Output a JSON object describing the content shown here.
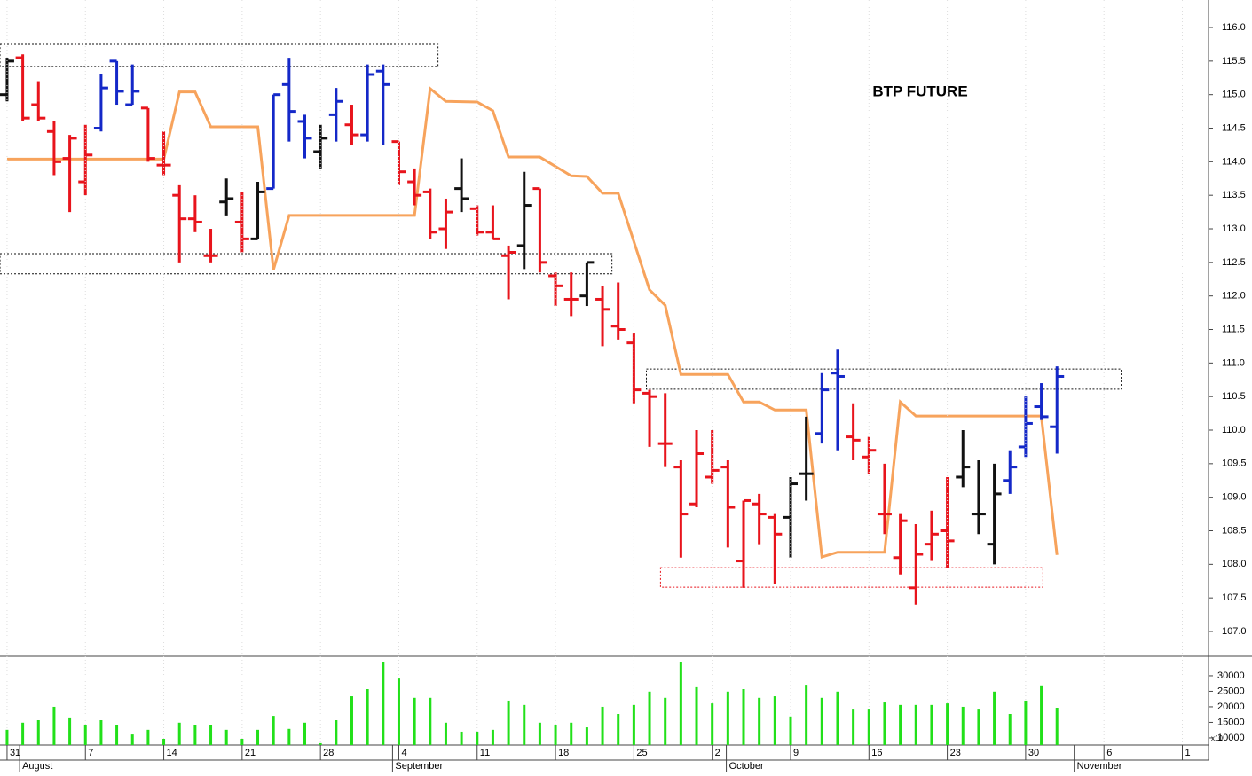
{
  "chart_data": [
    {
      "type": "ohlc",
      "title": "BTP FUTURE",
      "xlim": [
        -0.45,
        76.67
      ],
      "ylim": [
        106.63,
        116.41
      ],
      "yticks": [
        {
          "value": 107,
          "label": "107.0"
        },
        107.5,
        {
          "value": 108,
          "label": "108.0"
        },
        108.5,
        {
          "value": 109,
          "label": "109.0"
        },
        109.5,
        {
          "value": 110,
          "label": "110.0"
        },
        110.5,
        {
          "value": 111,
          "label": "111.0"
        },
        111.5,
        {
          "value": 112,
          "label": "112.0"
        },
        112.5,
        {
          "value": 113,
          "label": "113.0"
        },
        113.5,
        {
          "value": 114,
          "label": "114.0"
        },
        114.5,
        {
          "value": 115,
          "label": "115.0"
        },
        115.5,
        {
          "value": 116,
          "label": "116.0"
        }
      ],
      "x": [
        0,
        1,
        2,
        3,
        4,
        5,
        6,
        7,
        8,
        9,
        10,
        11,
        12,
        13,
        14,
        15,
        16,
        17,
        18,
        19,
        20,
        21,
        22,
        23,
        24,
        25,
        26,
        27,
        28,
        29,
        30,
        31,
        32,
        33,
        34,
        35,
        36,
        37,
        38,
        39,
        40,
        41,
        42,
        43,
        44,
        45,
        46,
        47,
        48,
        49,
        50,
        51,
        52,
        53,
        54,
        55,
        56,
        57,
        58,
        59,
        60,
        61,
        62,
        63,
        64,
        65,
        66,
        67
      ],
      "open": [
        115.0,
        115.55,
        114.85,
        114.45,
        114.05,
        113.7,
        114.5,
        115.5,
        114.85,
        114.8,
        113.95,
        113.5,
        113.15,
        112.6,
        113.4,
        113.1,
        112.85,
        113.6,
        115.15,
        114.6,
        114.15,
        114.7,
        114.55,
        114.4,
        115.35,
        114.3,
        113.7,
        113.55,
        113.0,
        113.6,
        113.3,
        112.95,
        112.6,
        112.75,
        113.6,
        112.3,
        111.95,
        112.0,
        111.95,
        111.55,
        111.3,
        110.55,
        109.8,
        109.45,
        108.9,
        109.3,
        109.45,
        108.05,
        108.9,
        108.7,
        108.7,
        109.35,
        109.95,
        110.85,
        109.9,
        109.6,
        108.75,
        108.1,
        107.65,
        108.3,
        108.5,
        109.3,
        108.75,
        108.3,
        109.25,
        109.75,
        110.35,
        110.05
      ],
      "high": [
        115.55,
        115.6,
        115.2,
        114.6,
        114.4,
        114.55,
        115.3,
        115.5,
        115.45,
        114.8,
        114.45,
        113.65,
        113.5,
        113.0,
        113.75,
        113.55,
        113.7,
        115.0,
        115.55,
        114.7,
        114.55,
        115.1,
        114.85,
        115.45,
        115.45,
        114.3,
        113.9,
        113.6,
        113.45,
        114.05,
        113.35,
        113.35,
        112.75,
        113.85,
        113.6,
        112.35,
        112.35,
        112.5,
        112.15,
        112.2,
        111.45,
        110.6,
        110.55,
        109.55,
        110.0,
        110.0,
        109.55,
        108.95,
        109.05,
        108.75,
        109.3,
        110.2,
        110.85,
        111.2,
        110.4,
        109.9,
        109.5,
        108.75,
        108.6,
        108.8,
        109.3,
        110.0,
        109.55,
        109.5,
        109.7,
        110.5,
        110.7,
        110.95
      ],
      "low": [
        114.9,
        114.6,
        114.6,
        113.8,
        113.25,
        113.5,
        114.45,
        114.85,
        114.85,
        114.0,
        113.8,
        112.5,
        112.95,
        112.5,
        113.2,
        112.65,
        112.85,
        113.6,
        114.3,
        114.05,
        113.9,
        114.3,
        114.25,
        114.3,
        114.25,
        113.65,
        113.35,
        112.85,
        112.7,
        113.25,
        112.9,
        112.85,
        111.95,
        112.4,
        112.35,
        111.85,
        111.7,
        111.85,
        111.25,
        111.35,
        110.4,
        109.75,
        109.45,
        108.1,
        108.85,
        109.2,
        108.25,
        107.65,
        108.3,
        107.7,
        108.1,
        108.95,
        109.8,
        109.7,
        109.55,
        109.35,
        108.45,
        107.85,
        107.4,
        108.05,
        107.95,
        109.15,
        108.45,
        108.0,
        109.05,
        109.6,
        110.15,
        109.65
      ],
      "close": [
        115.5,
        114.65,
        114.65,
        114.0,
        114.35,
        114.1,
        115.1,
        115.05,
        115.05,
        114.05,
        113.95,
        113.15,
        113.1,
        112.6,
        113.45,
        112.85,
        113.55,
        115.0,
        114.75,
        114.35,
        114.35,
        114.9,
        114.4,
        115.3,
        115.15,
        113.85,
        113.5,
        112.95,
        113.25,
        113.45,
        112.95,
        112.85,
        112.65,
        113.35,
        112.5,
        112.15,
        111.95,
        112.5,
        111.8,
        111.5,
        110.6,
        110.5,
        109.8,
        108.75,
        109.65,
        109.4,
        108.85,
        108.95,
        108.75,
        108.45,
        109.2,
        109.35,
        110.6,
        110.8,
        109.85,
        109.7,
        108.75,
        108.65,
        108.15,
        108.45,
        108.35,
        109.45,
        108.75,
        109.05,
        109.45,
        110.1,
        110.2,
        110.8
      ],
      "colors": [
        "#111111",
        "#e8141c",
        "#e8141c",
        "#e8141c",
        "#e8141c",
        "#e8141c",
        "#1428c8",
        "#1428c8",
        "#1428c8",
        "#e8141c",
        "#e8141c",
        "#e8141c",
        "#e8141c",
        "#e8141c",
        "#111111",
        "#e8141c",
        "#111111",
        "#1428c8",
        "#1428c8",
        "#1428c8",
        "#111111",
        "#1428c8",
        "#e8141c",
        "#1428c8",
        "#1428c8",
        "#e8141c",
        "#e8141c",
        "#e8141c",
        "#e8141c",
        "#111111",
        "#e8141c",
        "#e8141c",
        "#e8141c",
        "#111111",
        "#e8141c",
        "#e8141c",
        "#e8141c",
        "#111111",
        "#e8141c",
        "#e8141c",
        "#e8141c",
        "#e8141c",
        "#e8141c",
        "#e8141c",
        "#e8141c",
        "#e8141c",
        "#e8141c",
        "#e8141c",
        "#e8141c",
        "#e8141c",
        "#111111",
        "#111111",
        "#1428c8",
        "#1428c8",
        "#e8141c",
        "#e8141c",
        "#e8141c",
        "#e8141c",
        "#e8141c",
        "#e8141c",
        "#e8141c",
        "#111111",
        "#111111",
        "#111111",
        "#1428c8",
        "#1428c8",
        "#1428c8",
        "#1428c8"
      ],
      "stop_line": {
        "color": "#f7a35c",
        "x": [
          0,
          10,
          11,
          12,
          13,
          16,
          17,
          18,
          26,
          27,
          28,
          30,
          31,
          32,
          34,
          36,
          37,
          38,
          39,
          41,
          42,
          43,
          46,
          47,
          48,
          49,
          51,
          52,
          53,
          56,
          57,
          58,
          66,
          67
        ],
        "values": [
          114.04,
          114.04,
          115.04,
          115.04,
          114.52,
          114.52,
          112.39,
          113.2,
          113.2,
          115.09,
          114.9,
          114.89,
          114.76,
          114.07,
          114.07,
          113.79,
          113.78,
          113.53,
          113.53,
          112.09,
          111.86,
          110.83,
          110.83,
          110.42,
          110.42,
          110.3,
          110.3,
          108.11,
          108.18,
          108.18,
          110.42,
          110.21,
          110.21,
          108.14
        ]
      },
      "zones": [
        {
          "x": [
            -0.45,
            27.5
          ],
          "y": [
            115.42,
            115.75
          ],
          "color": "#111111"
        },
        {
          "x": [
            -0.45,
            38.6
          ],
          "y": [
            112.33,
            112.63
          ],
          "color": "#111111"
        },
        {
          "x": [
            40.8,
            71.1
          ],
          "y": [
            110.61,
            110.91
          ],
          "color": "#111111"
        },
        {
          "x": [
            41.7,
            66.1
          ],
          "y": [
            107.66,
            107.95
          ],
          "color": "#e8141c"
        }
      ]
    },
    {
      "type": "bar",
      "color": "#22e01a",
      "unit_note": "x10",
      "ylim": [
        7700,
        35700
      ],
      "yticks": [
        10000,
        15000,
        20000,
        25000,
        30000
      ],
      "values": [
        12600,
        14900,
        15700,
        20000,
        16300,
        14000,
        15700,
        14000,
        11100,
        12600,
        9700,
        14900,
        14000,
        14000,
        12600,
        9700,
        12600,
        17100,
        12900,
        14900,
        8300,
        15700,
        23400,
        25700,
        34300,
        29100,
        22900,
        22900,
        14900,
        12000,
        12000,
        12600,
        22000,
        20600,
        14900,
        14000,
        14900,
        13400,
        20000,
        17700,
        20600,
        24900,
        22900,
        34300,
        26300,
        21100,
        24900,
        25700,
        22900,
        23400,
        16900,
        27100,
        22900,
        24900,
        19100,
        19100,
        21400,
        20600,
        20600,
        20600,
        21100,
        20000,
        19100,
        24900,
        17700,
        22000,
        26900,
        19700
      ],
      "xticks": [
        {
          "value": 0,
          "label": "31"
        },
        {
          "value": 5,
          "label": "7"
        },
        {
          "value": 10,
          "label": "14"
        },
        {
          "value": 15,
          "label": "21"
        },
        {
          "value": 20,
          "label": "28"
        },
        {
          "value": 25,
          "label": "4"
        },
        {
          "value": 30,
          "label": "11"
        },
        {
          "value": 35,
          "label": "18"
        },
        {
          "value": 40,
          "label": "25"
        },
        {
          "value": 45,
          "label": "2"
        },
        {
          "value": 50,
          "label": "9"
        },
        {
          "value": 55,
          "label": "16"
        },
        {
          "value": 60,
          "label": "23"
        },
        {
          "value": 65,
          "label": "30"
        },
        {
          "value": 70,
          "label": "6"
        },
        {
          "value": 75,
          "label": "1"
        }
      ],
      "months": [
        {
          "value": 0.8,
          "label": "August"
        },
        {
          "value": 24.6,
          "label": "September"
        },
        {
          "value": 45.9,
          "label": "October"
        },
        {
          "value": 68.1,
          "label": "November"
        }
      ]
    }
  ]
}
